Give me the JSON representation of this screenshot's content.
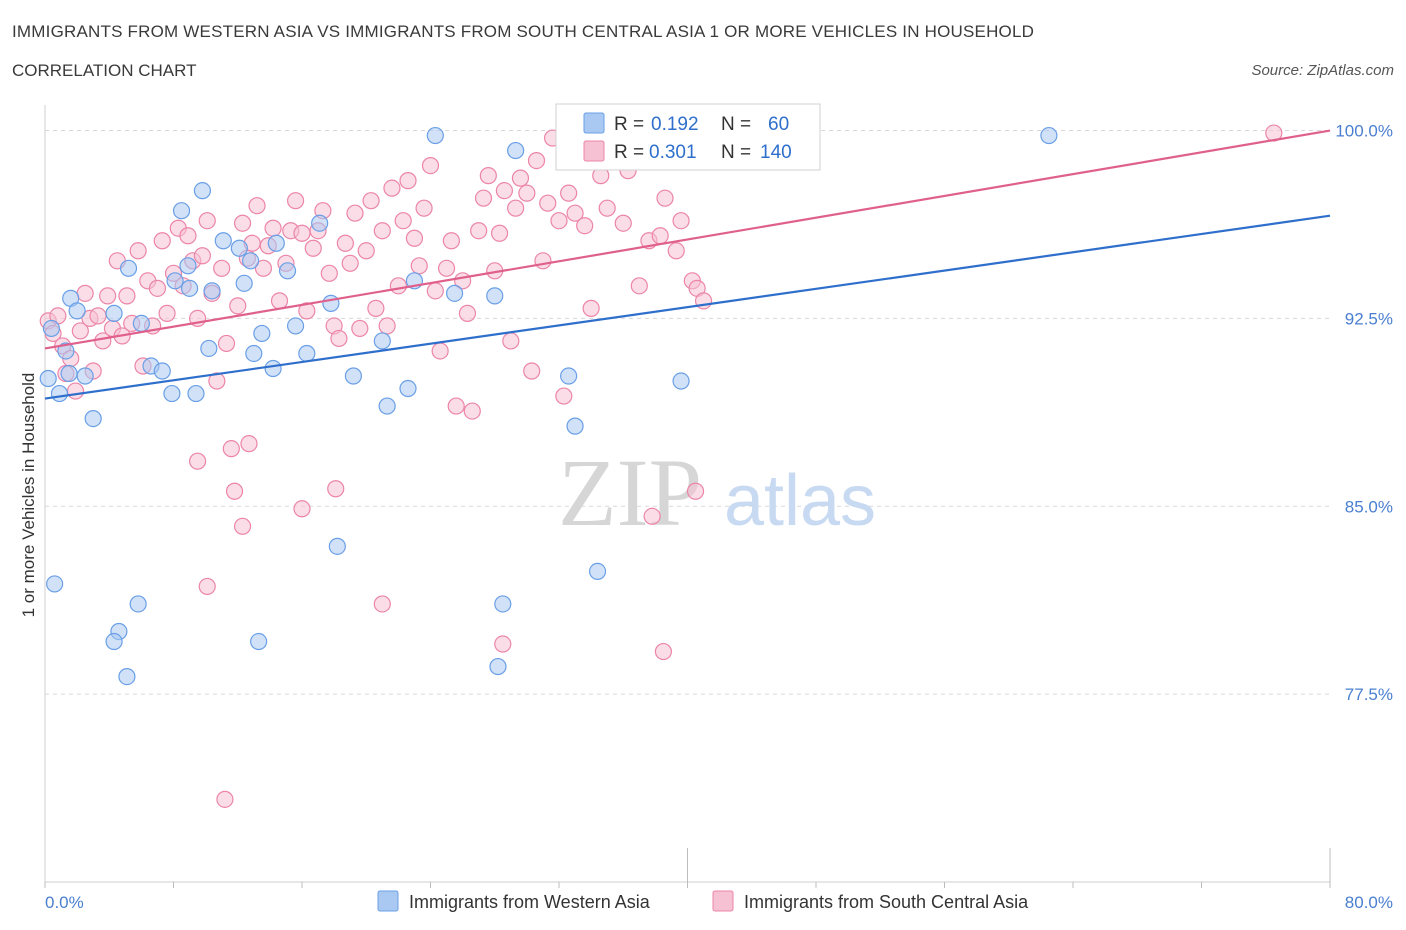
{
  "header": {
    "title": "IMMIGRANTS FROM WESTERN ASIA VS IMMIGRANTS FROM SOUTH CENTRAL ASIA 1 OR MORE VEHICLES IN HOUSEHOLD",
    "subtitle": "CORRELATION CHART",
    "source": "Source: ZipAtlas.com"
  },
  "watermark": {
    "zip": "ZIP",
    "atlas": "atlas"
  },
  "colors": {
    "western_asia": "#6a9fe6",
    "western_asia_fill": "#a9c8f2",
    "south_central_asia": "#ec85a8",
    "south_central_asia_fill": "#f6c1d3",
    "blue_line": "#2f6fcc",
    "pink_line": "#e0608d",
    "grid": "#d8d8d8",
    "tick_text": "#4a7fd0"
  },
  "legend": {
    "rows": [
      {
        "r_label": "R =",
        "r_value": "0.192",
        "n_label": "N =",
        "n_value": "60"
      },
      {
        "r_label": "R =",
        "r_value": "0.301",
        "n_label": "N =",
        "n_value": "140"
      }
    ]
  },
  "chart_data": {
    "type": "scatter",
    "xlabel": "",
    "ylabel": "1 or more Vehicles in Household",
    "xlim": [
      0,
      80
    ],
    "ylim": [
      70,
      100.7
    ],
    "x_tick_labels": [
      "0.0%",
      "80.0%"
    ],
    "y_ticks": [
      77.5,
      85.0,
      92.5,
      100.0
    ],
    "y_tick_labels": [
      "77.5%",
      "85.0%",
      "92.5%",
      "100.0%"
    ],
    "grid": true,
    "series": [
      {
        "name": "Immigrants from Western Asia",
        "r": 0.192,
        "n": 60,
        "trend": {
          "x": [
            0,
            80
          ],
          "y": [
            89.3,
            96.6
          ]
        },
        "points": [
          [
            0.2,
            90.1
          ],
          [
            0.4,
            92.1
          ],
          [
            0.9,
            89.5
          ],
          [
            1.3,
            91.2
          ],
          [
            1.6,
            93.3
          ],
          [
            2.0,
            92.8
          ],
          [
            2.5,
            90.2
          ],
          [
            3.0,
            88.5
          ],
          [
            1.5,
            90.3
          ],
          [
            4.3,
            92.7
          ],
          [
            5.2,
            94.5
          ],
          [
            6.0,
            92.3
          ],
          [
            6.6,
            90.6
          ],
          [
            7.3,
            90.4
          ],
          [
            7.9,
            89.5
          ],
          [
            8.1,
            94.0
          ],
          [
            8.5,
            96.8
          ],
          [
            8.9,
            94.6
          ],
          [
            9.0,
            93.7
          ],
          [
            9.4,
            89.5
          ],
          [
            9.8,
            97.6
          ],
          [
            10.2,
            91.3
          ],
          [
            10.4,
            93.6
          ],
          [
            11.1,
            95.6
          ],
          [
            12.1,
            95.3
          ],
          [
            12.4,
            93.9
          ],
          [
            12.8,
            94.8
          ],
          [
            13.5,
            91.9
          ],
          [
            14.2,
            90.5
          ],
          [
            13.0,
            91.1
          ],
          [
            14.4,
            95.5
          ],
          [
            15.1,
            94.4
          ],
          [
            15.6,
            92.2
          ],
          [
            16.3,
            91.1
          ],
          [
            17.1,
            96.3
          ],
          [
            17.8,
            93.1
          ],
          [
            19.2,
            90.2
          ],
          [
            21.0,
            91.6
          ],
          [
            21.3,
            89.0
          ],
          [
            22.6,
            89.7
          ],
          [
            23.0,
            94.0
          ],
          [
            24.3,
            99.8
          ],
          [
            25.5,
            93.5
          ],
          [
            28.0,
            93.4
          ],
          [
            28.2,
            78.6
          ],
          [
            28.5,
            81.1
          ],
          [
            29.3,
            99.2
          ],
          [
            32.6,
            90.2
          ],
          [
            33.0,
            88.2
          ],
          [
            34.4,
            82.4
          ],
          [
            39.6,
            90.0
          ],
          [
            43.0,
            99.8
          ],
          [
            62.5,
            99.8
          ],
          [
            0.6,
            81.9
          ],
          [
            5.8,
            81.1
          ],
          [
            4.6,
            80.0
          ],
          [
            4.3,
            79.6
          ],
          [
            5.1,
            78.2
          ],
          [
            13.3,
            79.6
          ],
          [
            18.2,
            83.4
          ]
        ]
      },
      {
        "name": "Immigrants from South Central Asia",
        "r": 0.301,
        "n": 140,
        "trend": {
          "x": [
            0,
            80
          ],
          "y": [
            91.3,
            100.0
          ]
        },
        "points": [
          [
            0.2,
            92.4
          ],
          [
            0.5,
            91.9
          ],
          [
            0.8,
            92.6
          ],
          [
            1.1,
            91.4
          ],
          [
            1.3,
            90.3
          ],
          [
            1.6,
            90.9
          ],
          [
            1.9,
            89.6
          ],
          [
            2.2,
            92.0
          ],
          [
            2.5,
            93.5
          ],
          [
            2.8,
            92.5
          ],
          [
            3.0,
            90.4
          ],
          [
            3.3,
            92.6
          ],
          [
            3.6,
            91.6
          ],
          [
            3.9,
            93.4
          ],
          [
            4.2,
            92.1
          ],
          [
            4.5,
            94.8
          ],
          [
            4.8,
            91.8
          ],
          [
            5.1,
            93.4
          ],
          [
            5.4,
            92.3
          ],
          [
            5.8,
            95.2
          ],
          [
            6.1,
            90.6
          ],
          [
            6.4,
            94.0
          ],
          [
            6.7,
            92.2
          ],
          [
            7.0,
            93.7
          ],
          [
            7.3,
            95.6
          ],
          [
            7.6,
            92.7
          ],
          [
            8.0,
            94.3
          ],
          [
            8.3,
            96.1
          ],
          [
            8.6,
            93.8
          ],
          [
            8.9,
            95.8
          ],
          [
            9.2,
            94.8
          ],
          [
            9.5,
            92.5
          ],
          [
            9.8,
            95.0
          ],
          [
            10.1,
            96.4
          ],
          [
            10.4,
            93.5
          ],
          [
            10.7,
            90.0
          ],
          [
            11.0,
            94.5
          ],
          [
            11.3,
            91.5
          ],
          [
            11.6,
            87.3
          ],
          [
            12.0,
            93.0
          ],
          [
            12.3,
            96.3
          ],
          [
            12.6,
            94.9
          ],
          [
            12.9,
            95.5
          ],
          [
            13.2,
            97.0
          ],
          [
            13.6,
            94.5
          ],
          [
            13.9,
            95.4
          ],
          [
            14.2,
            96.1
          ],
          [
            14.6,
            93.2
          ],
          [
            15.0,
            94.7
          ],
          [
            15.3,
            96.0
          ],
          [
            15.6,
            97.2
          ],
          [
            16.0,
            95.9
          ],
          [
            16.3,
            92.8
          ],
          [
            16.7,
            95.3
          ],
          [
            17.0,
            96.0
          ],
          [
            17.3,
            96.8
          ],
          [
            17.7,
            94.3
          ],
          [
            18.0,
            92.2
          ],
          [
            18.3,
            91.7
          ],
          [
            18.7,
            95.5
          ],
          [
            19.0,
            94.7
          ],
          [
            19.3,
            96.7
          ],
          [
            19.6,
            92.1
          ],
          [
            20.0,
            95.2
          ],
          [
            20.3,
            97.2
          ],
          [
            20.6,
            92.9
          ],
          [
            21.0,
            96.0
          ],
          [
            21.3,
            92.2
          ],
          [
            21.6,
            97.7
          ],
          [
            22.0,
            93.8
          ],
          [
            22.3,
            96.4
          ],
          [
            22.6,
            98.0
          ],
          [
            23.0,
            95.7
          ],
          [
            23.3,
            94.6
          ],
          [
            23.6,
            96.9
          ],
          [
            24.0,
            98.6
          ],
          [
            24.3,
            93.6
          ],
          [
            24.6,
            91.2
          ],
          [
            25.0,
            94.5
          ],
          [
            25.3,
            95.6
          ],
          [
            25.6,
            89.0
          ],
          [
            26.0,
            94.0
          ],
          [
            26.3,
            92.7
          ],
          [
            26.6,
            88.8
          ],
          [
            27.0,
            96.0
          ],
          [
            27.3,
            97.3
          ],
          [
            27.6,
            98.2
          ],
          [
            28.0,
            94.4
          ],
          [
            28.3,
            95.9
          ],
          [
            28.6,
            97.6
          ],
          [
            29.0,
            91.6
          ],
          [
            29.3,
            96.9
          ],
          [
            29.6,
            98.1
          ],
          [
            30.0,
            97.5
          ],
          [
            30.3,
            90.4
          ],
          [
            30.6,
            98.8
          ],
          [
            31.0,
            94.8
          ],
          [
            31.3,
            97.1
          ],
          [
            31.6,
            99.7
          ],
          [
            32.0,
            96.4
          ],
          [
            32.3,
            89.4
          ],
          [
            32.6,
            97.5
          ],
          [
            33.0,
            96.7
          ],
          [
            33.3,
            99.9
          ],
          [
            33.6,
            96.2
          ],
          [
            34.0,
            92.9
          ],
          [
            34.3,
            99.9
          ],
          [
            34.6,
            98.2
          ],
          [
            35.0,
            96.9
          ],
          [
            35.3,
            99.8
          ],
          [
            35.6,
            99.9
          ],
          [
            36.0,
            96.3
          ],
          [
            36.3,
            98.4
          ],
          [
            36.6,
            99.8
          ],
          [
            37.0,
            93.8
          ],
          [
            37.3,
            99.9
          ],
          [
            37.6,
            95.6
          ],
          [
            38.0,
            99.9
          ],
          [
            38.3,
            95.8
          ],
          [
            38.6,
            97.3
          ],
          [
            39.0,
            99.8
          ],
          [
            39.3,
            95.2
          ],
          [
            39.6,
            96.4
          ],
          [
            40.0,
            99.8
          ],
          [
            40.3,
            94.0
          ],
          [
            40.6,
            93.7
          ],
          [
            41.0,
            93.2
          ],
          [
            41.3,
            99.9
          ],
          [
            38.5,
            79.2
          ],
          [
            37.8,
            84.6
          ],
          [
            40.5,
            85.6
          ],
          [
            28.5,
            79.5
          ],
          [
            21.0,
            81.1
          ],
          [
            18.1,
            85.7
          ],
          [
            16.0,
            84.9
          ],
          [
            12.3,
            84.2
          ],
          [
            11.8,
            85.6
          ],
          [
            10.1,
            81.8
          ],
          [
            9.5,
            86.8
          ],
          [
            11.2,
            73.3
          ],
          [
            76.5,
            99.9
          ],
          [
            12.7,
            87.5
          ]
        ]
      }
    ]
  },
  "bottom_legend": [
    {
      "label": "Immigrants from Western Asia"
    },
    {
      "label": "Immigrants from South Central Asia"
    }
  ]
}
